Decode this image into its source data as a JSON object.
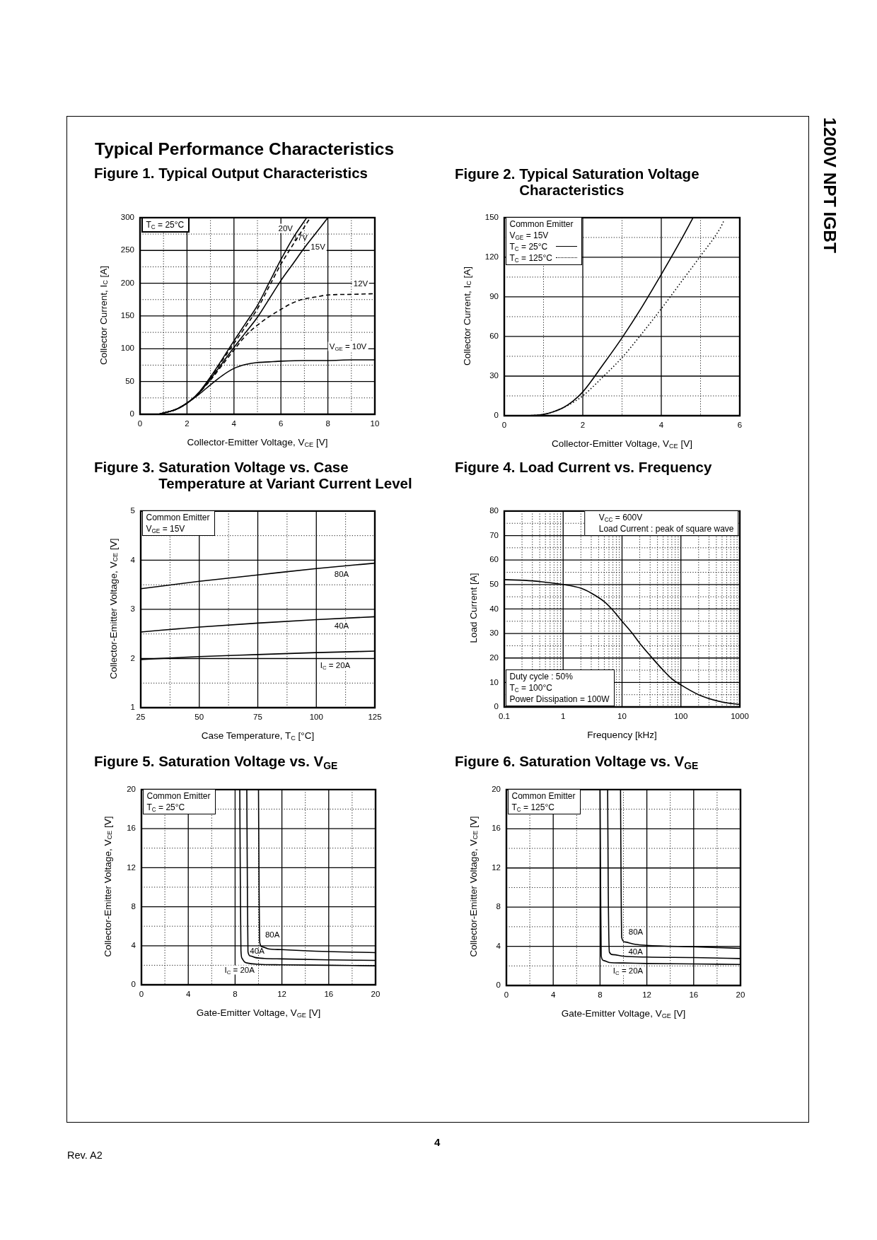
{
  "chart_data": [
    {
      "type": "other",
      "title": "Typical Performance Characteristics",
      "annotations": [
        "1200V NPT IGBT",
        "4",
        "Rev. A2"
      ]
    },
    {
      "type": "line",
      "title": "Figure 1. Typical Output Characteristics",
      "xlabel": "Collector-Emitter Voltage, V$_{CE}$ [V]",
      "ylabel": "Collector Current, I$_{C}$ [A]",
      "xlim": [
        0,
        10
      ],
      "ylim": [
        0,
        300
      ],
      "xticks": [
        0,
        {
          "value": 1,
          "label": null
        },
        2,
        {
          "value": 3,
          "label": null
        },
        4,
        {
          "value": 5,
          "label": null
        },
        6,
        {
          "value": 7,
          "label": null
        },
        8,
        {
          "value": 9,
          "label": null
        },
        10
      ],
      "yticks": [
        0,
        {
          "value": 25,
          "label": null
        },
        50,
        {
          "value": 75,
          "label": null
        },
        100,
        {
          "value": 125,
          "label": null
        },
        150,
        {
          "value": 175,
          "label": null
        },
        200,
        {
          "value": 225,
          "label": null
        },
        250,
        {
          "value": 275,
          "label": null
        },
        300
      ],
      "grid": true,
      "annotations": [
        "T$_{C}$ = 25°C"
      ],
      "series": [
        {
          "name": "20V",
          "color": "#000000",
          "line_style": "solid",
          "x": [
            0.8,
            1,
            1.5,
            2,
            2.5,
            3,
            3.5,
            4,
            4.5,
            5,
            5.5,
            6,
            6.5,
            7.1
          ],
          "values": [
            0,
            2,
            7,
            17,
            33,
            57,
            84,
            112,
            139,
            166,
            201,
            236,
            268,
            300
          ]
        },
        {
          "name": "17V",
          "color": "#000000",
          "line_style": "dashed",
          "x": [
            0.8,
            1,
            1.5,
            2,
            2.5,
            3,
            3.5,
            4,
            4.5,
            5,
            5.5,
            6,
            6.5,
            7,
            7.25
          ],
          "values": [
            0,
            2,
            7,
            17,
            33,
            56,
            82,
            108,
            134,
            161,
            195,
            229,
            258,
            286,
            300
          ]
        },
        {
          "name": "15V",
          "color": "#000000",
          "line_style": "solid",
          "x": [
            0.8,
            1,
            1.5,
            2,
            2.5,
            3,
            3.5,
            4,
            4.5,
            5,
            5.5,
            6,
            6.5,
            7,
            7.5,
            8
          ],
          "values": [
            0,
            2,
            7,
            17,
            32,
            54,
            78,
            102,
            125,
            148,
            176,
            204,
            229,
            254,
            277,
            300
          ]
        },
        {
          "name": "12V",
          "color": "#000000",
          "line_style": "dashed",
          "x": [
            0.8,
            1,
            1.5,
            2,
            2.5,
            3,
            3.5,
            4,
            4.5,
            5,
            5.5,
            6,
            6.5,
            7,
            7.5,
            8,
            9,
            10
          ],
          "values": [
            0,
            2,
            7,
            17,
            32,
            52,
            75,
            98,
            120,
            136,
            149,
            160,
            170,
            176,
            179,
            182,
            183,
            184
          ]
        },
        {
          "name": "V$_{GE}$ = 10V",
          "color": "#000000",
          "line_style": "solid",
          "x": [
            0.8,
            1,
            1.5,
            2,
            2.5,
            3,
            3.5,
            4,
            4.5,
            5,
            5.5,
            6,
            7,
            8,
            9,
            10
          ],
          "values": [
            0,
            2,
            7,
            17,
            30,
            45,
            59,
            70,
            76,
            79,
            80,
            81,
            82,
            82,
            83,
            83
          ]
        }
      ]
    },
    {
      "type": "line",
      "title": "Figure 2. Typical Saturation Voltage Characteristics",
      "xlabel": "Collector-Emitter Voltage, V$_{CE}$ [V]",
      "ylabel": "Collector Current, I$_{C}$ [A]",
      "xlim": [
        0,
        6
      ],
      "ylim": [
        0,
        150
      ],
      "xticks": [
        0,
        {
          "value": 1,
          "label": null
        },
        2,
        {
          "value": 3,
          "label": null
        },
        4,
        {
          "value": 5,
          "label": null
        },
        6
      ],
      "yticks": [
        0,
        {
          "value": 15,
          "label": null
        },
        30,
        {
          "value": 45,
          "label": null
        },
        60,
        {
          "value": 75,
          "label": null
        },
        90,
        {
          "value": 105,
          "label": null
        },
        120,
        {
          "value": 135,
          "label": null
        },
        150
      ],
      "grid": true,
      "legend": "top left",
      "annotations": [
        "Common Emitter",
        "V$_{GE}$ = 15V"
      ],
      "series": [
        {
          "name": "T$_{C}$ = 25°C",
          "color": "#000000",
          "line_style": "solid",
          "x": [
            0.6,
            1,
            1.25,
            1.5,
            1.75,
            2,
            2.5,
            3,
            3.5,
            4,
            4.5,
            4.81
          ],
          "values": [
            0,
            1,
            3,
            6,
            11,
            18,
            38,
            59,
            82,
            107,
            133,
            150
          ]
        },
        {
          "name": "T$_{C}$ = 125°C",
          "color": "#000000",
          "line_style": "dotted",
          "x": [
            0.6,
            1,
            1.25,
            1.5,
            1.75,
            2,
            2.5,
            3,
            3.5,
            4,
            4.5,
            5,
            5.5,
            5.6
          ],
          "values": [
            0,
            1,
            3,
            6,
            10,
            15,
            29,
            44,
            62,
            81,
            101,
            121,
            142,
            148
          ]
        }
      ]
    },
    {
      "type": "line",
      "title": "Figure 3. Saturation Voltage vs. Case Temperature at Variant Current Level",
      "xlabel": "Case Temperature, T$_{C}$ [°C]",
      "ylabel": "Collector-Emitter Voltage, V$_{CE}$ [V]",
      "xlim": [
        25,
        125
      ],
      "ylim": [
        1,
        5
      ],
      "xticks": [
        25,
        {
          "value": 37.5,
          "label": null
        },
        50,
        {
          "value": 62.5,
          "label": null
        },
        75,
        {
          "value": 87.5,
          "label": null
        },
        100,
        {
          "value": 112.5,
          "label": null
        },
        125
      ],
      "yticks": [
        1,
        {
          "value": 1.5,
          "label": null
        },
        2,
        {
          "value": 2.5,
          "label": null
        },
        3,
        {
          "value": 3.5,
          "label": null
        },
        4,
        {
          "value": 4.5,
          "label": null
        },
        5
      ],
      "grid": true,
      "annotations": [
        "Common Emitter",
        "V$_{GE}$ = 15V"
      ],
      "x": [
        25,
        50,
        75,
        100,
        125
      ],
      "series": [
        {
          "name": "80A",
          "color": "#000000",
          "values": [
            3.42,
            3.57,
            3.7,
            3.83,
            3.94
          ]
        },
        {
          "name": "40A",
          "color": "#000000",
          "values": [
            2.54,
            2.64,
            2.72,
            2.79,
            2.85
          ]
        },
        {
          "name": "I$_{C}$ = 20A",
          "color": "#000000",
          "values": [
            1.98,
            2.04,
            2.08,
            2.12,
            2.15
          ]
        }
      ]
    },
    {
      "type": "line",
      "title": "Figure 4. Load Current vs. Frequency",
      "xlabel": "Frequency [kHz]",
      "ylabel": "Load Current [A]",
      "log": "x",
      "xlim": [
        0.1,
        1000
      ],
      "ylim": [
        0,
        80
      ],
      "xticks": [
        0.1,
        {
          "value": 0.2,
          "label": null
        },
        {
          "value": 0.3,
          "label": null
        },
        {
          "value": 0.4,
          "label": null
        },
        {
          "value": 0.5,
          "label": null
        },
        {
          "value": 0.6,
          "label": null
        },
        {
          "value": 0.7,
          "label": null
        },
        {
          "value": 0.8,
          "label": null
        },
        {
          "value": 0.9,
          "label": null
        },
        1,
        {
          "value": 2,
          "label": null
        },
        {
          "value": 3,
          "label": null
        },
        {
          "value": 4,
          "label": null
        },
        {
          "value": 5,
          "label": null
        },
        {
          "value": 6,
          "label": null
        },
        {
          "value": 7,
          "label": null
        },
        {
          "value": 8,
          "label": null
        },
        {
          "value": 9,
          "label": null
        },
        10,
        {
          "value": 20,
          "label": null
        },
        {
          "value": 30,
          "label": null
        },
        {
          "value": 40,
          "label": null
        },
        {
          "value": 50,
          "label": null
        },
        {
          "value": 60,
          "label": null
        },
        {
          "value": 70,
          "label": null
        },
        {
          "value": 80,
          "label": null
        },
        {
          "value": 90,
          "label": null
        },
        100,
        {
          "value": 200,
          "label": null
        },
        {
          "value": 300,
          "label": null
        },
        {
          "value": 400,
          "label": null
        },
        {
          "value": 500,
          "label": null
        },
        {
          "value": 600,
          "label": null
        },
        {
          "value": 700,
          "label": null
        },
        {
          "value": 800,
          "label": null
        },
        {
          "value": 900,
          "label": null
        },
        1000
      ],
      "yticks": [
        0,
        {
          "value": 5,
          "label": null
        },
        10,
        {
          "value": 15,
          "label": null
        },
        20,
        {
          "value": 25,
          "label": null
        },
        30,
        {
          "value": 35,
          "label": null
        },
        40,
        {
          "value": 45,
          "label": null
        },
        50,
        {
          "value": 55,
          "label": null
        },
        60,
        {
          "value": 65,
          "label": null
        },
        70,
        {
          "value": 75,
          "label": null
        },
        80
      ],
      "grid": true,
      "annotations": [
        "V$_{CC}$ = 600V",
        "Load Current : peak of square wave",
        "Duty cycle : 50%",
        "T$_{C}$ = 100°C",
        "Power Dissipation = 100W"
      ],
      "series": [
        {
          "color": "#000000",
          "x": [
            0.1,
            0.3,
            1,
            2,
            3,
            5,
            7,
            10,
            15,
            20,
            30,
            50,
            70,
            100,
            200,
            500,
            1000
          ],
          "values": [
            52,
            51.5,
            50,
            48.5,
            46.5,
            43,
            39.5,
            35,
            30,
            26,
            21,
            15,
            11.5,
            9,
            5,
            2,
            1
          ]
        }
      ]
    },
    {
      "type": "line",
      "title": "Figure 5. Saturation Voltage vs. V$_{GE}$",
      "xlabel": "Gate-Emitter Voltage, V$_{GE}$ [V]",
      "ylabel": "Collector-Emitter Voltage, V$_{CE}$ [V]",
      "xlim": [
        0,
        20
      ],
      "ylim": [
        0,
        20
      ],
      "xticks": [
        0,
        {
          "value": 2,
          "label": null
        },
        4,
        {
          "value": 6,
          "label": null
        },
        8,
        {
          "value": 10,
          "label": null
        },
        12,
        {
          "value": 14,
          "label": null
        },
        16,
        {
          "value": 18,
          "label": null
        },
        20
      ],
      "yticks": [
        0,
        {
          "value": 2,
          "label": null
        },
        4,
        {
          "value": 6,
          "label": null
        },
        8,
        {
          "value": 10,
          "label": null
        },
        12,
        {
          "value": 14,
          "label": null
        },
        16,
        {
          "value": 18,
          "label": null
        },
        20
      ],
      "grid": true,
      "annotations": [
        "Common Emitter",
        "T$_{C}$ = 25°C"
      ],
      "series": [
        {
          "name": "80A",
          "color": "#000000",
          "x": [
            10,
            10.05,
            10.1,
            10.3,
            10.8,
            12,
            16,
            20
          ],
          "values": [
            20,
            10,
            4.4,
            3.9,
            3.7,
            3.6,
            3.4,
            3.3
          ]
        },
        {
          "name": "40A",
          "color": "#000000",
          "x": [
            9,
            9.05,
            9.1,
            9.3,
            9.7,
            10.5,
            12,
            16,
            20
          ],
          "values": [
            20,
            10,
            3.4,
            2.95,
            2.8,
            2.7,
            2.65,
            2.55,
            2.5
          ]
        },
        {
          "name": "I$_{C}$ = 20A",
          "color": "#000000",
          "x": [
            8.4,
            8.45,
            8.5,
            8.6,
            8.8,
            9.2,
            10,
            12,
            16,
            20
          ],
          "values": [
            20,
            10,
            3.5,
            2.7,
            2.35,
            2.2,
            2.1,
            2.05,
            2,
            1.95
          ]
        }
      ]
    },
    {
      "type": "line",
      "title": "Figure 6. Saturation Voltage vs. V$_{GE}$",
      "xlabel": "Gate-Emitter Voltage, V$_{GE}$ [V]",
      "ylabel": "Collector-Emitter Voltage, V$_{CE}$ [V]",
      "xlim": [
        0,
        20
      ],
      "ylim": [
        0,
        20
      ],
      "xticks": [
        0,
        {
          "value": 2,
          "label": null
        },
        4,
        {
          "value": 6,
          "label": null
        },
        8,
        {
          "value": 10,
          "label": null
        },
        12,
        {
          "value": 14,
          "label": null
        },
        16,
        {
          "value": 18,
          "label": null
        },
        20
      ],
      "yticks": [
        0,
        {
          "value": 2,
          "label": null
        },
        4,
        {
          "value": 6,
          "label": null
        },
        8,
        {
          "value": 10,
          "label": null
        },
        12,
        {
          "value": 14,
          "label": null
        },
        16,
        {
          "value": 18,
          "label": null
        },
        20
      ],
      "grid": true,
      "annotations": [
        "Common Emitter",
        "T$_{C}$ = 125°C"
      ],
      "series": [
        {
          "name": "80A",
          "color": "#000000",
          "x": [
            9.75,
            9.8,
            9.85,
            10.1,
            11,
            12,
            16,
            20
          ],
          "values": [
            20,
            10,
            4.9,
            4.45,
            4.2,
            4.1,
            3.95,
            3.8
          ]
        },
        {
          "name": "40A",
          "color": "#000000",
          "x": [
            8.65,
            8.7,
            8.8,
            9.1,
            10,
            12,
            16,
            20
          ],
          "values": [
            20,
            10,
            3.4,
            3.15,
            3,
            2.9,
            2.85,
            2.75
          ]
        },
        {
          "name": "I$_{C}$ = 20A",
          "color": "#000000",
          "x": [
            8,
            8.05,
            8.1,
            8.3,
            8.8,
            10,
            12,
            16,
            20
          ],
          "values": [
            20,
            10,
            3,
            2.55,
            2.35,
            2.3,
            2.25,
            2.2,
            2.15
          ]
        }
      ]
    }
  ]
}
